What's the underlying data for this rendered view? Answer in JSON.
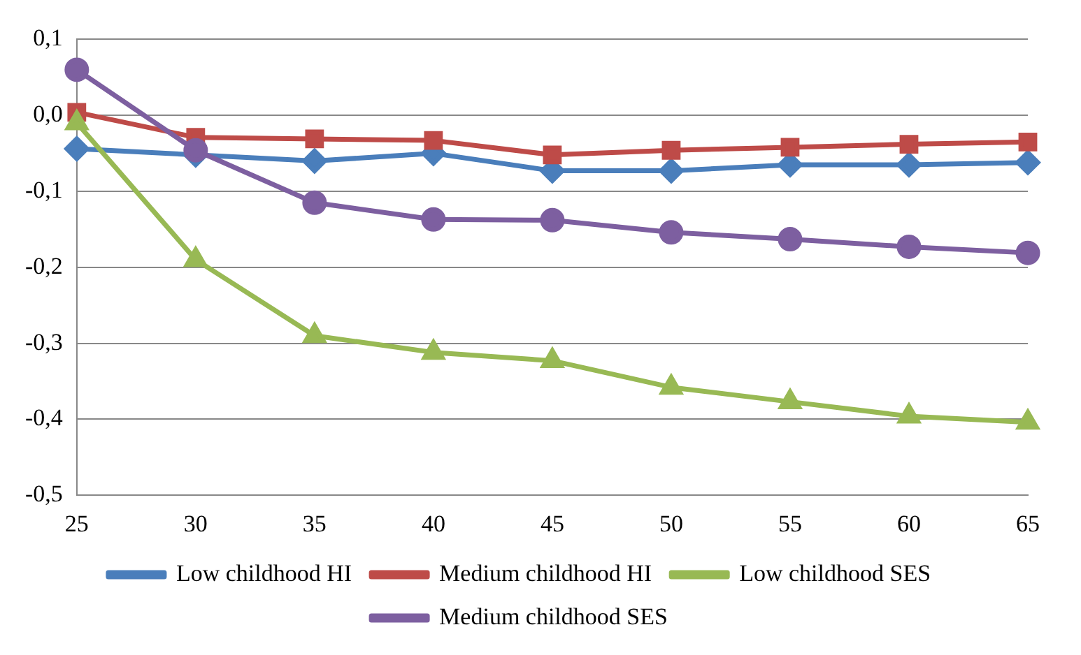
{
  "chart_data": {
    "type": "line",
    "categories": [
      "25",
      "30",
      "35",
      "40",
      "45",
      "50",
      "55",
      "60",
      "65"
    ],
    "series": [
      {
        "name": "Low childhood HI",
        "color": "#4a7ebb",
        "marker": "diamond",
        "values": [
          -0.044,
          -0.052,
          -0.06,
          -0.05,
          -0.073,
          -0.073,
          -0.065,
          -0.065,
          -0.062
        ]
      },
      {
        "name": "Medium childhood HI",
        "color": "#be4b48",
        "marker": "square",
        "values": [
          0.004,
          -0.029,
          -0.031,
          -0.033,
          -0.052,
          -0.046,
          -0.042,
          -0.038,
          -0.035
        ]
      },
      {
        "name": "Low childhood SES",
        "color": "#98b954",
        "marker": "triangle",
        "values": [
          -0.01,
          -0.19,
          -0.29,
          -0.312,
          -0.323,
          -0.358,
          -0.377,
          -0.396,
          -0.404
        ]
      },
      {
        "name": "Medium childhood SES",
        "color": "#7d5fa0",
        "marker": "circle",
        "values": [
          0.06,
          -0.046,
          -0.115,
          -0.137,
          -0.138,
          -0.154,
          -0.163,
          -0.173,
          -0.181
        ]
      }
    ],
    "ylim": [
      -0.5,
      0.1
    ],
    "yticks": [
      {
        "value": -0.5,
        "label": "-0,5"
      },
      {
        "value": -0.4,
        "label": "-0,4"
      },
      {
        "value": -0.3,
        "label": "-0,3"
      },
      {
        "value": -0.2,
        "label": "-0,2"
      },
      {
        "value": -0.1,
        "label": "-0,1"
      },
      {
        "value": 0,
        "label": "0,0"
      },
      {
        "value": 0.1,
        "label": "0,1"
      }
    ],
    "grid": "y",
    "legend": "bottom",
    "line_style": "solid"
  }
}
